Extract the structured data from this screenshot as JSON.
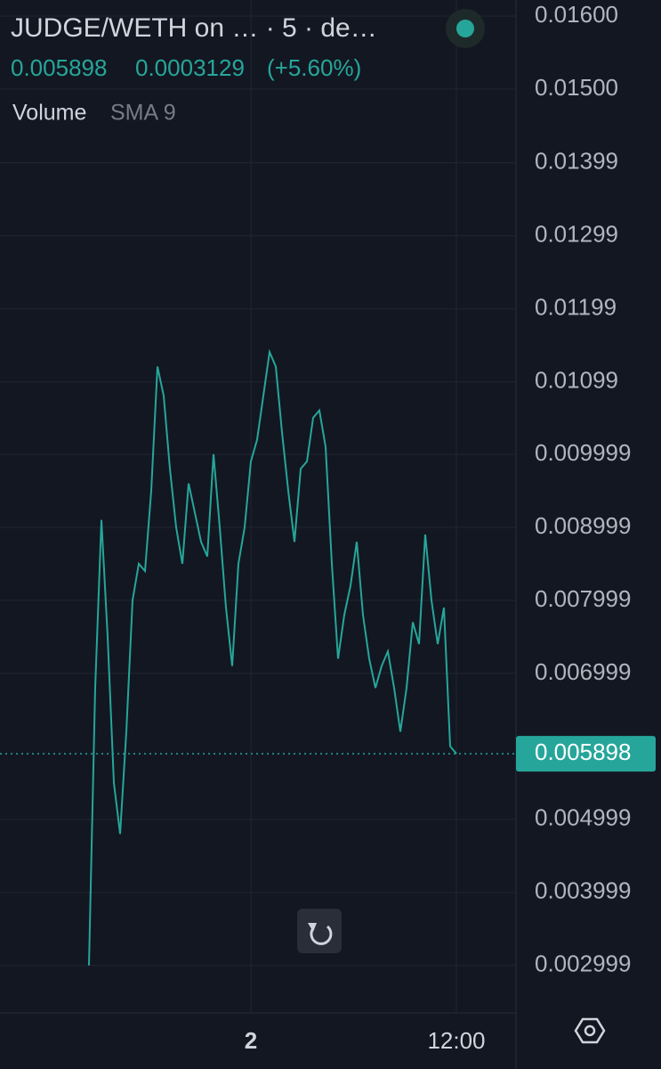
{
  "chart_data": {
    "type": "line",
    "title": "JUDGE/WETH on … · 5 · de…",
    "last_price": 0.005898,
    "change": 0.0003129,
    "change_percent": "(+5.60%)",
    "volume_label": "Volume",
    "sma_label": "SMA 9",
    "color": "#26a69a",
    "categories": [
      null,
      null,
      null,
      null,
      null,
      null,
      null,
      null,
      null,
      null,
      null,
      null,
      null,
      null,
      null,
      null,
      null,
      null,
      null,
      null,
      null,
      null,
      null,
      null,
      null,
      null,
      "2",
      null,
      null,
      null,
      null,
      null,
      null,
      null,
      null,
      null,
      null,
      null,
      null,
      null,
      null,
      null,
      null,
      null,
      null,
      null,
      null,
      null,
      null,
      null,
      null,
      null,
      null,
      null,
      null,
      null,
      null,
      null,
      null,
      "12:00"
    ],
    "values": [
      0.003,
      0.0068,
      0.0091,
      0.0075,
      0.0055,
      0.0048,
      0.0062,
      0.008,
      0.0085,
      0.0084,
      0.0095,
      0.0112,
      0.0108,
      0.0098,
      0.009,
      0.0085,
      0.0096,
      0.0092,
      0.0088,
      0.0086,
      0.01,
      0.009,
      0.0079,
      0.0071,
      0.0085,
      0.009,
      0.0099,
      0.0102,
      0.0108,
      0.0114,
      0.0112,
      0.0103,
      0.0095,
      0.0088,
      0.0098,
      0.0099,
      0.0105,
      0.0106,
      0.0101,
      0.0085,
      0.0072,
      0.0078,
      0.0082,
      0.0088,
      0.0078,
      0.0072,
      0.0068,
      0.0071,
      0.0073,
      0.0068,
      0.0062,
      0.0068,
      0.0077,
      0.0074,
      0.0089,
      0.008,
      0.0074,
      0.0079,
      0.006,
      0.0059
    ],
    "ylim": [
      0.00235,
      0.01622
    ],
    "yticks": [
      {
        "value": 0.016,
        "label": "0.01600"
      },
      {
        "value": 0.015,
        "label": "0.01500"
      },
      0.01399,
      0.01299,
      0.01199,
      0.01099,
      0.009999,
      0.008999,
      0.007999,
      0.006999,
      0.004999,
      0.003999,
      0.002999
    ],
    "grid": true
  }
}
